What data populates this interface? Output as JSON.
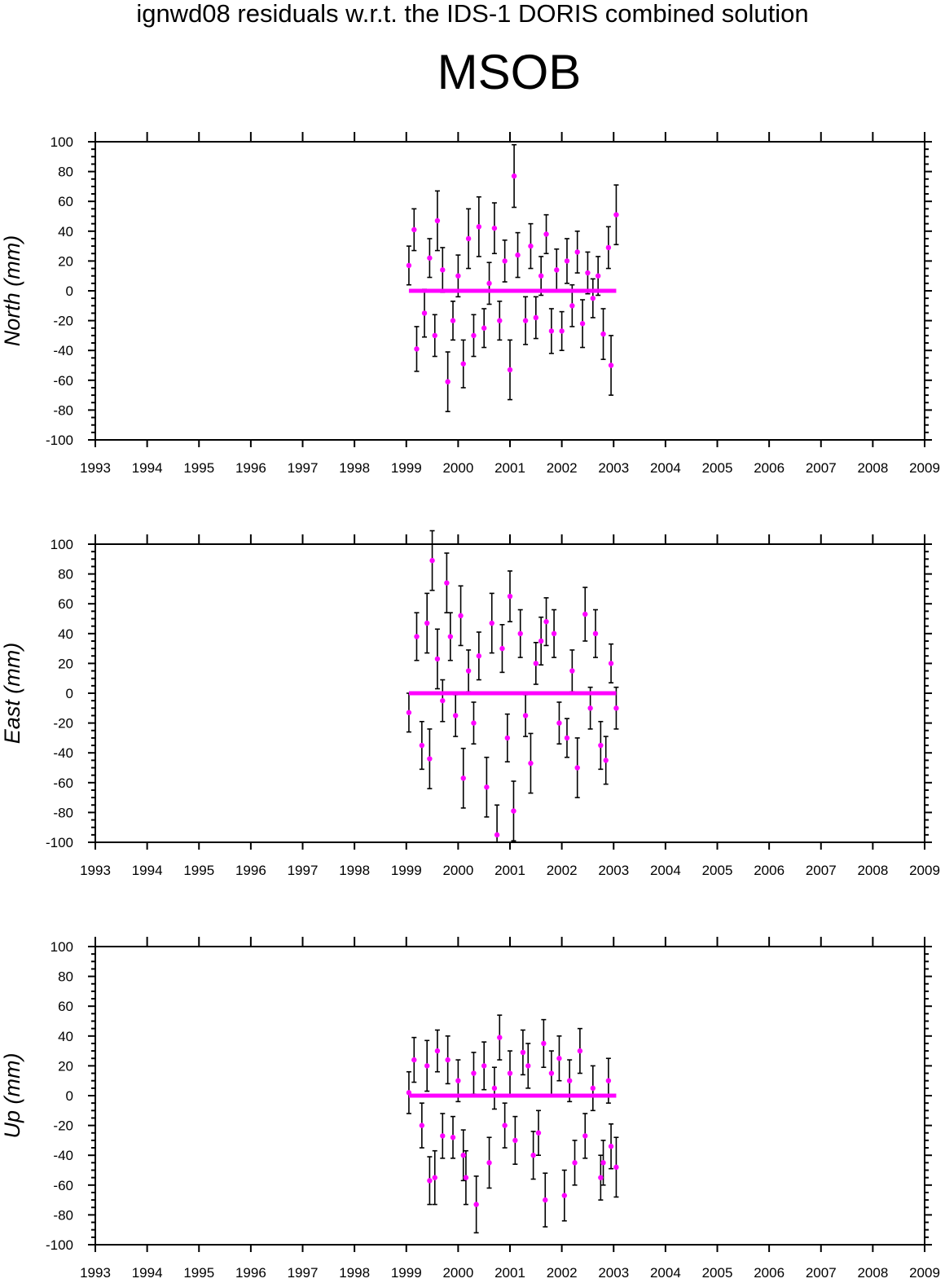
{
  "suptitle": "ignwd08 residuals w.r.t. the IDS-1 DORIS combined solution",
  "station": "MSOB",
  "colors": {
    "point": "#ff00ff",
    "errorbar": "#000000",
    "axis": "#000000"
  },
  "chart_data": [
    {
      "type": "scatter",
      "ylabel": "North (mm)",
      "xlim": [
        1993,
        2009
      ],
      "ylim": [
        -100,
        100
      ],
      "x_ticks": [
        "1993",
        "1994",
        "1995",
        "1996",
        "1997",
        "1998",
        "1999",
        "2000",
        "2001",
        "2002",
        "2003",
        "2004",
        "2005",
        "2006",
        "2007",
        "2008",
        "2009"
      ],
      "y_ticks": [
        "100",
        "80",
        "60",
        "40",
        "20",
        "0",
        "-20",
        "-40",
        "-60",
        "-80",
        "-100"
      ],
      "grid": false,
      "error_bars": true,
      "zero_line": [
        1999.05,
        2003.05
      ],
      "points": [
        {
          "x": 1999.05,
          "y": 17,
          "err": 13
        },
        {
          "x": 1999.15,
          "y": 41,
          "err": 14
        },
        {
          "x": 1999.2,
          "y": -39,
          "err": 15
        },
        {
          "x": 1999.35,
          "y": -15,
          "err": 16
        },
        {
          "x": 1999.45,
          "y": 22,
          "err": 13
        },
        {
          "x": 1999.55,
          "y": -30,
          "err": 14
        },
        {
          "x": 1999.6,
          "y": 47,
          "err": 20
        },
        {
          "x": 1999.7,
          "y": 14,
          "err": 15
        },
        {
          "x": 1999.8,
          "y": -61,
          "err": 20
        },
        {
          "x": 1999.9,
          "y": -20,
          "err": 13
        },
        {
          "x": 2000.0,
          "y": 10,
          "err": 14
        },
        {
          "x": 2000.1,
          "y": -49,
          "err": 16
        },
        {
          "x": 2000.2,
          "y": 35,
          "err": 20
        },
        {
          "x": 2000.3,
          "y": -30,
          "err": 14
        },
        {
          "x": 2000.4,
          "y": 43,
          "err": 20
        },
        {
          "x": 2000.5,
          "y": -25,
          "err": 13
        },
        {
          "x": 2000.6,
          "y": 5,
          "err": 14
        },
        {
          "x": 2000.7,
          "y": 42,
          "err": 17
        },
        {
          "x": 2000.8,
          "y": -20,
          "err": 13
        },
        {
          "x": 2000.9,
          "y": 20,
          "err": 14
        },
        {
          "x": 2001.0,
          "y": -53,
          "err": 20
        },
        {
          "x": 2001.08,
          "y": 77,
          "err": 21
        },
        {
          "x": 2001.15,
          "y": 24,
          "err": 15
        },
        {
          "x": 2001.3,
          "y": -20,
          "err": 16
        },
        {
          "x": 2001.4,
          "y": 30,
          "err": 15
        },
        {
          "x": 2001.5,
          "y": -18,
          "err": 14
        },
        {
          "x": 2001.6,
          "y": 10,
          "err": 13
        },
        {
          "x": 2001.7,
          "y": 38,
          "err": 13
        },
        {
          "x": 2001.8,
          "y": -27,
          "err": 15
        },
        {
          "x": 2001.9,
          "y": 14,
          "err": 14
        },
        {
          "x": 2002.0,
          "y": -27,
          "err": 13
        },
        {
          "x": 2002.1,
          "y": 20,
          "err": 15
        },
        {
          "x": 2002.2,
          "y": -10,
          "err": 14
        },
        {
          "x": 2002.3,
          "y": 26,
          "err": 14
        },
        {
          "x": 2002.4,
          "y": -22,
          "err": 16
        },
        {
          "x": 2002.5,
          "y": 12,
          "err": 14
        },
        {
          "x": 2002.6,
          "y": -5,
          "err": 13
        },
        {
          "x": 2002.7,
          "y": 10,
          "err": 13
        },
        {
          "x": 2002.8,
          "y": -29,
          "err": 17
        },
        {
          "x": 2002.9,
          "y": 29,
          "err": 14
        },
        {
          "x": 2002.95,
          "y": -50,
          "err": 20
        },
        {
          "x": 2003.05,
          "y": 51,
          "err": 20
        }
      ]
    },
    {
      "type": "scatter",
      "ylabel": "East (mm)",
      "xlim": [
        1993,
        2009
      ],
      "ylim": [
        -100,
        100
      ],
      "x_ticks": [
        "1993",
        "1994",
        "1995",
        "1996",
        "1997",
        "1998",
        "1999",
        "2000",
        "2001",
        "2002",
        "2003",
        "2004",
        "2005",
        "2006",
        "2007",
        "2008",
        "2009"
      ],
      "y_ticks": [
        "100",
        "80",
        "60",
        "40",
        "20",
        "0",
        "-20",
        "-40",
        "-60",
        "-80",
        "-100"
      ],
      "grid": false,
      "error_bars": true,
      "zero_line": [
        1999.05,
        2003.05
      ],
      "points": [
        {
          "x": 1999.05,
          "y": -13,
          "err": 13
        },
        {
          "x": 1999.2,
          "y": 38,
          "err": 16
        },
        {
          "x": 1999.3,
          "y": -35,
          "err": 16
        },
        {
          "x": 1999.4,
          "y": 47,
          "err": 20
        },
        {
          "x": 1999.45,
          "y": -44,
          "err": 20
        },
        {
          "x": 1999.5,
          "y": 89,
          "err": 20
        },
        {
          "x": 1999.6,
          "y": 23,
          "err": 20
        },
        {
          "x": 1999.7,
          "y": -5,
          "err": 14
        },
        {
          "x": 1999.78,
          "y": 74,
          "err": 20
        },
        {
          "x": 1999.85,
          "y": 38,
          "err": 16
        },
        {
          "x": 1999.95,
          "y": -15,
          "err": 14
        },
        {
          "x": 2000.05,
          "y": 52,
          "err": 20
        },
        {
          "x": 2000.1,
          "y": -57,
          "err": 20
        },
        {
          "x": 2000.2,
          "y": 15,
          "err": 14
        },
        {
          "x": 2000.3,
          "y": -20,
          "err": 14
        },
        {
          "x": 2000.4,
          "y": 25,
          "err": 16
        },
        {
          "x": 2000.55,
          "y": -63,
          "err": 20
        },
        {
          "x": 2000.65,
          "y": 47,
          "err": 20
        },
        {
          "x": 2000.75,
          "y": -95,
          "err": 20
        },
        {
          "x": 2000.85,
          "y": 30,
          "err": 16
        },
        {
          "x": 2000.95,
          "y": -30,
          "err": 16
        },
        {
          "x": 2001.0,
          "y": 65,
          "err": 17
        },
        {
          "x": 2001.07,
          "y": -79,
          "err": 20
        },
        {
          "x": 2001.2,
          "y": 40,
          "err": 16
        },
        {
          "x": 2001.3,
          "y": -15,
          "err": 14
        },
        {
          "x": 2001.4,
          "y": -47,
          "err": 20
        },
        {
          "x": 2001.5,
          "y": 20,
          "err": 14
        },
        {
          "x": 2001.6,
          "y": 35,
          "err": 16
        },
        {
          "x": 2001.7,
          "y": 48,
          "err": 16
        },
        {
          "x": 2001.85,
          "y": 40,
          "err": 16
        },
        {
          "x": 2001.95,
          "y": -20,
          "err": 14
        },
        {
          "x": 2002.1,
          "y": -30,
          "err": 13
        },
        {
          "x": 2002.2,
          "y": 15,
          "err": 14
        },
        {
          "x": 2002.3,
          "y": -50,
          "err": 20
        },
        {
          "x": 2002.45,
          "y": 53,
          "err": 18
        },
        {
          "x": 2002.55,
          "y": -10,
          "err": 14
        },
        {
          "x": 2002.65,
          "y": 40,
          "err": 16
        },
        {
          "x": 2002.75,
          "y": -35,
          "err": 16
        },
        {
          "x": 2002.85,
          "y": -45,
          "err": 16
        },
        {
          "x": 2002.95,
          "y": 20,
          "err": 13
        },
        {
          "x": 2003.05,
          "y": -10,
          "err": 14
        }
      ]
    },
    {
      "type": "scatter",
      "ylabel": "Up (mm)",
      "xlim": [
        1993,
        2009
      ],
      "ylim": [
        -100,
        100
      ],
      "x_ticks": [
        "1993",
        "1994",
        "1995",
        "1996",
        "1997",
        "1998",
        "1999",
        "2000",
        "2001",
        "2002",
        "2003",
        "2004",
        "2005",
        "2006",
        "2007",
        "2008",
        "2009"
      ],
      "y_ticks": [
        "100",
        "80",
        "60",
        "40",
        "20",
        "0",
        "-20",
        "-40",
        "-60",
        "-80",
        "-100"
      ],
      "grid": false,
      "error_bars": true,
      "zero_line": [
        1999.05,
        2003.05
      ],
      "points": [
        {
          "x": 1999.05,
          "y": 2,
          "err": 14
        },
        {
          "x": 1999.15,
          "y": 24,
          "err": 15
        },
        {
          "x": 1999.3,
          "y": -20,
          "err": 15
        },
        {
          "x": 1999.4,
          "y": 20,
          "err": 17
        },
        {
          "x": 1999.45,
          "y": -57,
          "err": 16
        },
        {
          "x": 1999.55,
          "y": -55,
          "err": 18
        },
        {
          "x": 1999.6,
          "y": 30,
          "err": 14
        },
        {
          "x": 1999.7,
          "y": -27,
          "err": 15
        },
        {
          "x": 1999.8,
          "y": 24,
          "err": 16
        },
        {
          "x": 1999.9,
          "y": -28,
          "err": 14
        },
        {
          "x": 2000.0,
          "y": 10,
          "err": 14
        },
        {
          "x": 2000.1,
          "y": -40,
          "err": 17
        },
        {
          "x": 2000.15,
          "y": -55,
          "err": 18
        },
        {
          "x": 2000.3,
          "y": 15,
          "err": 14
        },
        {
          "x": 2000.35,
          "y": -73,
          "err": 19
        },
        {
          "x": 2000.5,
          "y": 20,
          "err": 16
        },
        {
          "x": 2000.6,
          "y": -45,
          "err": 17
        },
        {
          "x": 2000.7,
          "y": 5,
          "err": 14
        },
        {
          "x": 2000.8,
          "y": 39,
          "err": 15
        },
        {
          "x": 2000.9,
          "y": -20,
          "err": 15
        },
        {
          "x": 2001.0,
          "y": 15,
          "err": 15
        },
        {
          "x": 2001.1,
          "y": -30,
          "err": 16
        },
        {
          "x": 2001.25,
          "y": 29,
          "err": 15
        },
        {
          "x": 2001.35,
          "y": 20,
          "err": 15
        },
        {
          "x": 2001.45,
          "y": -40,
          "err": 16
        },
        {
          "x": 2001.55,
          "y": -25,
          "err": 15
        },
        {
          "x": 2001.65,
          "y": 35,
          "err": 16
        },
        {
          "x": 2001.68,
          "y": -70,
          "err": 18
        },
        {
          "x": 2001.8,
          "y": 15,
          "err": 15
        },
        {
          "x": 2001.95,
          "y": 25,
          "err": 15
        },
        {
          "x": 2002.05,
          "y": -67,
          "err": 17
        },
        {
          "x": 2002.15,
          "y": 10,
          "err": 14
        },
        {
          "x": 2002.25,
          "y": -45,
          "err": 15
        },
        {
          "x": 2002.35,
          "y": 30,
          "err": 15
        },
        {
          "x": 2002.45,
          "y": -27,
          "err": 15
        },
        {
          "x": 2002.6,
          "y": 5,
          "err": 15
        },
        {
          "x": 2002.75,
          "y": -55,
          "err": 15
        },
        {
          "x": 2002.8,
          "y": -45,
          "err": 15
        },
        {
          "x": 2002.9,
          "y": 10,
          "err": 15
        },
        {
          "x": 2002.95,
          "y": -34,
          "err": 15
        },
        {
          "x": 2003.05,
          "y": -48,
          "err": 20
        }
      ]
    }
  ]
}
